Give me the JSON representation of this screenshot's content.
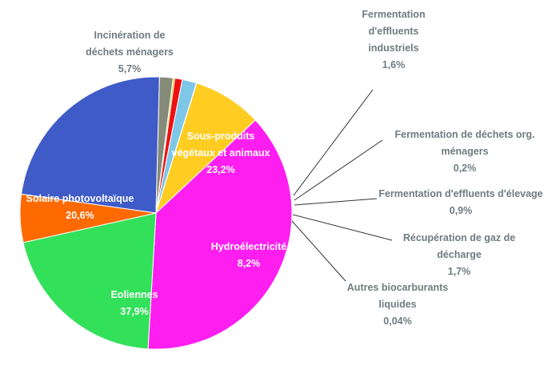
{
  "chart_data": {
    "type": "pie",
    "title": "",
    "slices": [
      {
        "label": "Sous-produits végétaux et animaux",
        "value": 23.2,
        "value_text": "23,2%",
        "color": "#3f5bc8"
      },
      {
        "label": "Fermentation d'effluents industriels",
        "value": 1.6,
        "value_text": "1,6%",
        "color": "#868a78"
      },
      {
        "label": "Fermentation de déchets org. ménagers",
        "value": 0.2,
        "value_text": "0,2%",
        "color": "#c8d400"
      },
      {
        "label": "Fermentation d'effluents d'élevage",
        "value": 0.9,
        "value_text": "0,9%",
        "color": "#ee1111"
      },
      {
        "label": "Récupération de gaz de décharge",
        "value": 1.7,
        "value_text": "1,7%",
        "color": "#7ec7e8"
      },
      {
        "label": "Autres biocarburants liquides",
        "value": 0.04,
        "value_text": "0,04%",
        "color": "#556b2f"
      },
      {
        "label": "Hydroélectricité",
        "value": 8.2,
        "value_text": "8,2%",
        "color": "#ffcc22"
      },
      {
        "label": "Eoliennes",
        "value": 37.9,
        "value_text": "37,9%",
        "color": "#ff1ef0"
      },
      {
        "label": "Solaire photovoltaïque",
        "value": 20.6,
        "value_text": "20,6%",
        "color": "#33e05a"
      },
      {
        "label": "Incinération de déchets ménagers",
        "value": 5.7,
        "value_text": "5,7%",
        "color": "#ff6a00"
      }
    ]
  }
}
